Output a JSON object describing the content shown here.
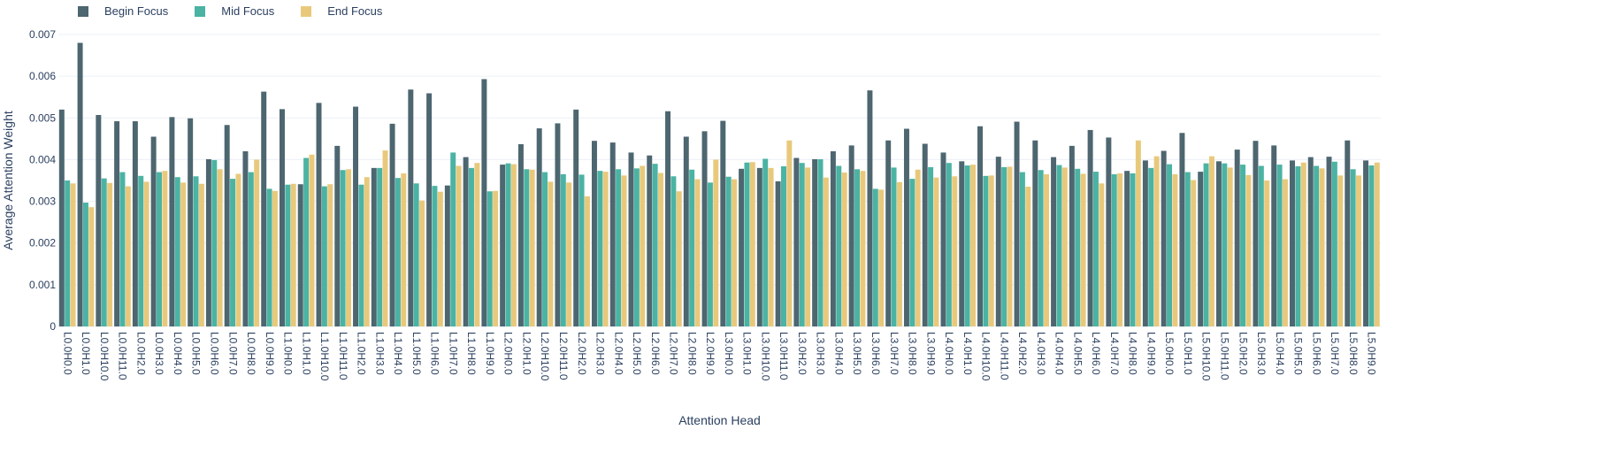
{
  "legend": {
    "items": [
      {
        "label": "Begin Focus",
        "color": "#4d6670"
      },
      {
        "label": "Mid Focus",
        "color": "#4bb3a3"
      },
      {
        "label": "End Focus",
        "color": "#e8c97c"
      }
    ]
  },
  "chart_data": {
    "type": "bar",
    "title": "",
    "xlabel": "Attention Head",
    "ylabel": "Average Attention Weight",
    "ylim": [
      0,
      0.007
    ],
    "yticks": [
      0,
      0.001,
      0.002,
      0.003,
      0.004,
      0.005,
      0.006,
      0.007
    ],
    "ytick_labels": [
      "0",
      "0.001",
      "0.002",
      "0.003",
      "0.004",
      "0.005",
      "0.006",
      "0.007"
    ],
    "grid": true,
    "legend_position": "top-left",
    "categories": [
      "L0.0H0.0",
      "L0.0H1.0",
      "L0.0H10.0",
      "L0.0H11.0",
      "L0.0H2.0",
      "L0.0H3.0",
      "L0.0H4.0",
      "L0.0H5.0",
      "L0.0H6.0",
      "L0.0H7.0",
      "L0.0H8.0",
      "L0.0H9.0",
      "L1.0H0.0",
      "L1.0H1.0",
      "L1.0H10.0",
      "L1.0H11.0",
      "L1.0H2.0",
      "L1.0H3.0",
      "L1.0H4.0",
      "L1.0H5.0",
      "L1.0H6.0",
      "L1.0H7.0",
      "L1.0H8.0",
      "L1.0H9.0",
      "L2.0H0.0",
      "L2.0H1.0",
      "L2.0H10.0",
      "L2.0H11.0",
      "L2.0H2.0",
      "L2.0H3.0",
      "L2.0H4.0",
      "L2.0H5.0",
      "L2.0H6.0",
      "L2.0H7.0",
      "L2.0H8.0",
      "L2.0H9.0",
      "L3.0H0.0",
      "L3.0H1.0",
      "L3.0H10.0",
      "L3.0H11.0",
      "L3.0H2.0",
      "L3.0H3.0",
      "L3.0H4.0",
      "L3.0H5.0",
      "L3.0H6.0",
      "L3.0H7.0",
      "L3.0H8.0",
      "L3.0H9.0",
      "L4.0H0.0",
      "L4.0H1.0",
      "L4.0H10.0",
      "L4.0H11.0",
      "L4.0H2.0",
      "L4.0H3.0",
      "L4.0H4.0",
      "L4.0H5.0",
      "L4.0H6.0",
      "L4.0H7.0",
      "L4.0H8.0",
      "L4.0H9.0",
      "L5.0H0.0",
      "L5.0H1.0",
      "L5.0H10.0",
      "L5.0H11.0",
      "L5.0H2.0",
      "L5.0H3.0",
      "L5.0H4.0",
      "L5.0H5.0",
      "L5.0H6.0",
      "L5.0H7.0",
      "L5.0H8.0",
      "L5.0H9.0"
    ],
    "series": [
      {
        "name": "Begin Focus",
        "color": "#4d6670",
        "values": [
          0.0052,
          0.0068,
          0.00507,
          0.00492,
          0.00492,
          0.00455,
          0.00502,
          0.00499,
          0.00401,
          0.00483,
          0.0042,
          0.00563,
          0.00521,
          0.00341,
          0.00536,
          0.00433,
          0.00527,
          0.0038,
          0.00486,
          0.00568,
          0.00559,
          0.00338,
          0.00406,
          0.00593,
          0.00388,
          0.00437,
          0.00475,
          0.00487,
          0.0052,
          0.00445,
          0.00441,
          0.00417,
          0.0041,
          0.00516,
          0.00455,
          0.00468,
          0.00493,
          0.00378,
          0.0038,
          0.00348,
          0.00404,
          0.00401,
          0.0042,
          0.00434,
          0.00566,
          0.00446,
          0.00474,
          0.00438,
          0.00417,
          0.00396,
          0.0048,
          0.00407,
          0.00491,
          0.00446,
          0.00406,
          0.00433,
          0.00471,
          0.00453,
          0.00373,
          0.00398,
          0.00421,
          0.00464,
          0.00371,
          0.00396,
          0.00424,
          0.00445,
          0.00434,
          0.00398,
          0.00406,
          0.00407,
          0.00446,
          0.00398
        ]
      },
      {
        "name": "Mid Focus",
        "color": "#4bb3a3",
        "values": [
          0.0035,
          0.00297,
          0.00355,
          0.0037,
          0.00361,
          0.0037,
          0.00358,
          0.0036,
          0.00399,
          0.00354,
          0.0037,
          0.0033,
          0.0034,
          0.00404,
          0.00336,
          0.00375,
          0.0034,
          0.0038,
          0.00356,
          0.00343,
          0.00337,
          0.00417,
          0.0038,
          0.00324,
          0.00391,
          0.00377,
          0.0037,
          0.00365,
          0.00364,
          0.00373,
          0.00377,
          0.00379,
          0.0039,
          0.0036,
          0.00376,
          0.00345,
          0.00359,
          0.00393,
          0.00402,
          0.00384,
          0.00392,
          0.00401,
          0.00385,
          0.00377,
          0.0033,
          0.00381,
          0.00354,
          0.00382,
          0.00392,
          0.00386,
          0.00361,
          0.00382,
          0.0037,
          0.00375,
          0.00387,
          0.00378,
          0.00371,
          0.00365,
          0.00367,
          0.0038,
          0.00389,
          0.0037,
          0.00391,
          0.00391,
          0.00388,
          0.00385,
          0.00388,
          0.00384,
          0.00385,
          0.00395,
          0.00377,
          0.00386
        ]
      },
      {
        "name": "End Focus",
        "color": "#e8c97c",
        "values": [
          0.00343,
          0.00286,
          0.00344,
          0.00336,
          0.00347,
          0.00373,
          0.00345,
          0.00342,
          0.00377,
          0.00366,
          0.004,
          0.00325,
          0.00342,
          0.00412,
          0.00341,
          0.00377,
          0.00358,
          0.00422,
          0.00367,
          0.00302,
          0.00323,
          0.00385,
          0.00392,
          0.00325,
          0.00389,
          0.00376,
          0.00347,
          0.00345,
          0.00312,
          0.00371,
          0.00362,
          0.00385,
          0.00368,
          0.00324,
          0.00353,
          0.004,
          0.00353,
          0.00394,
          0.0038,
          0.00446,
          0.00381,
          0.00357,
          0.00369,
          0.00373,
          0.00328,
          0.00346,
          0.00376,
          0.00357,
          0.0036,
          0.00388,
          0.00362,
          0.00383,
          0.00335,
          0.00365,
          0.00381,
          0.00366,
          0.00343,
          0.00367,
          0.00446,
          0.00408,
          0.00365,
          0.00351,
          0.00408,
          0.00381,
          0.00363,
          0.0035,
          0.00353,
          0.00393,
          0.00379,
          0.00362,
          0.00362,
          0.00393
        ]
      }
    ]
  }
}
